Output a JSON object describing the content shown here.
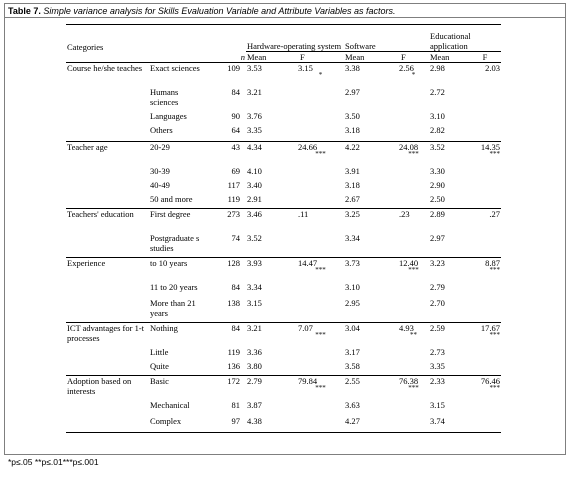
{
  "caption": {
    "label": "Table 7.",
    "title": "Simple variance analysis for Skills Evaluation Variable and Attribute Variables as factors."
  },
  "header": {
    "categories": "Categories",
    "group1": "Hardware-operating system",
    "group2": "Software",
    "group3": "Educational application",
    "n": "n",
    "mean": "Mean",
    "f": "F"
  },
  "rows": [
    {
      "cat": "Course he/she teaches",
      "sub": "Exact sciences",
      "n": "109",
      "m1": "3.53",
      "f1": "3.15",
      "s1": "*",
      "m2": "3.38",
      "f2": "2.56",
      "s2": "*",
      "m3": "2.98",
      "f3": "2.03",
      "s3": ""
    },
    {
      "cat": "",
      "sub": "Humans sciences",
      "n": "84",
      "m1": "3.21",
      "f1": "",
      "s1": "",
      "m2": "2.97",
      "f2": "",
      "s2": "",
      "m3": "2.72",
      "f3": "",
      "s3": ""
    },
    {
      "cat": "",
      "sub": "Languages",
      "n": "90",
      "m1": "3.76",
      "f1": "",
      "s1": "",
      "m2": "3.50",
      "f2": "",
      "s2": "",
      "m3": "3.10",
      "f3": "",
      "s3": ""
    },
    {
      "cat": "",
      "sub": "Others",
      "n": "64",
      "m1": "3.35",
      "f1": "",
      "s1": "",
      "m2": "3.18",
      "f2": "",
      "s2": "",
      "m3": "2.82",
      "f3": "",
      "s3": ""
    },
    {
      "cat": "Teacher age",
      "sub": "20-29",
      "n": "43",
      "m1": "4.34",
      "f1": "24.66",
      "s1": "***",
      "m2": "4.22",
      "f2": "24.08",
      "s2": "***",
      "m3": "3.52",
      "f3": "14.35",
      "s3": "***"
    },
    {
      "cat": "",
      "sub": "30-39",
      "n": "69",
      "m1": "4.10",
      "f1": "",
      "s1": "",
      "m2": "3.91",
      "f2": "",
      "s2": "",
      "m3": "3.30",
      "f3": "",
      "s3": ""
    },
    {
      "cat": "",
      "sub": "40-49",
      "n": "117",
      "m1": "3.40",
      "f1": "",
      "s1": "",
      "m2": "3.18",
      "f2": "",
      "s2": "",
      "m3": "2.90",
      "f3": "",
      "s3": ""
    },
    {
      "cat": "",
      "sub": "50 and more",
      "n": "119",
      "m1": "2.91",
      "f1": "",
      "s1": "",
      "m2": "2.67",
      "f2": "",
      "s2": "",
      "m3": "2.50",
      "f3": "",
      "s3": ""
    },
    {
      "cat": "Teachers' education",
      "sub": "First degree",
      "n": "273",
      "m1": "3.46",
      "f1": ".11",
      "s1": "",
      "m2": "3.25",
      "f2": ".23",
      "s2": "",
      "m3": "2.89",
      "f3": ".27",
      "s3": ""
    },
    {
      "cat": "",
      "sub": "Postgraduate s studies",
      "n": "74",
      "m1": "3.52",
      "f1": "",
      "s1": "",
      "m2": "3.34",
      "f2": "",
      "s2": "",
      "m3": "2.97",
      "f3": "",
      "s3": ""
    },
    {
      "cat": "Experience",
      "sub": "to 10 years",
      "n": "128",
      "m1": "3.93",
      "f1": "14.47",
      "s1": "***",
      "m2": "3.73",
      "f2": "12.40",
      "s2": "***",
      "m3": "3.23",
      "f3": "8.87",
      "s3": "***"
    },
    {
      "cat": "",
      "sub": "11 to 20 years",
      "n": "84",
      "m1": "3.34",
      "f1": "",
      "s1": "",
      "m2": "3.10",
      "f2": "",
      "s2": "",
      "m3": "2.79",
      "f3": "",
      "s3": ""
    },
    {
      "cat": "",
      "sub": "More than 21 years",
      "n": "138",
      "m1": "3.15",
      "f1": "",
      "s1": "",
      "m2": "2.95",
      "f2": "",
      "s2": "",
      "m3": "2.70",
      "f3": "",
      "s3": ""
    },
    {
      "cat": "ICT advantages for 1-t processes",
      "sub": "Nothing",
      "n": "84",
      "m1": "3.21",
      "f1": "7.07",
      "s1": "***",
      "m2": "3.04",
      "f2": "4.93",
      "s2": "**",
      "m3": "2.59",
      "f3": "17.67",
      "s3": "***"
    },
    {
      "cat": "",
      "sub": "Little",
      "n": "119",
      "m1": "3.36",
      "f1": "",
      "s1": "",
      "m2": "3.17",
      "f2": "",
      "s2": "",
      "m3": "2.73",
      "f3": "",
      "s3": ""
    },
    {
      "cat": "",
      "sub": "Quite",
      "n": "136",
      "m1": "3.80",
      "f1": "",
      "s1": "",
      "m2": "3.58",
      "f2": "",
      "s2": "",
      "m3": "3.35",
      "f3": "",
      "s3": ""
    },
    {
      "cat": "Adoption based on interests",
      "sub": "Basic",
      "n": "172",
      "m1": "2.79",
      "f1": "79.84",
      "s1": "***",
      "m2": "2.55",
      "f2": "76.38",
      "s2": "***",
      "m3": "2.33",
      "f3": "76.46",
      "s3": "***"
    },
    {
      "cat": "",
      "sub": "Mechanical",
      "n": "81",
      "m1": "3.87",
      "f1": "",
      "s1": "",
      "m2": "3.63",
      "f2": "",
      "s2": "",
      "m3": "3.15",
      "f3": "",
      "s3": ""
    },
    {
      "cat": "",
      "sub": "Complex",
      "n": "97",
      "m1": "4.38",
      "f1": "",
      "s1": "",
      "m2": "4.27",
      "f2": "",
      "s2": "",
      "m3": "3.74",
      "f3": "",
      "s3": ""
    }
  ],
  "footnote": "*p≤.05 **p≤.01***p≤.001"
}
